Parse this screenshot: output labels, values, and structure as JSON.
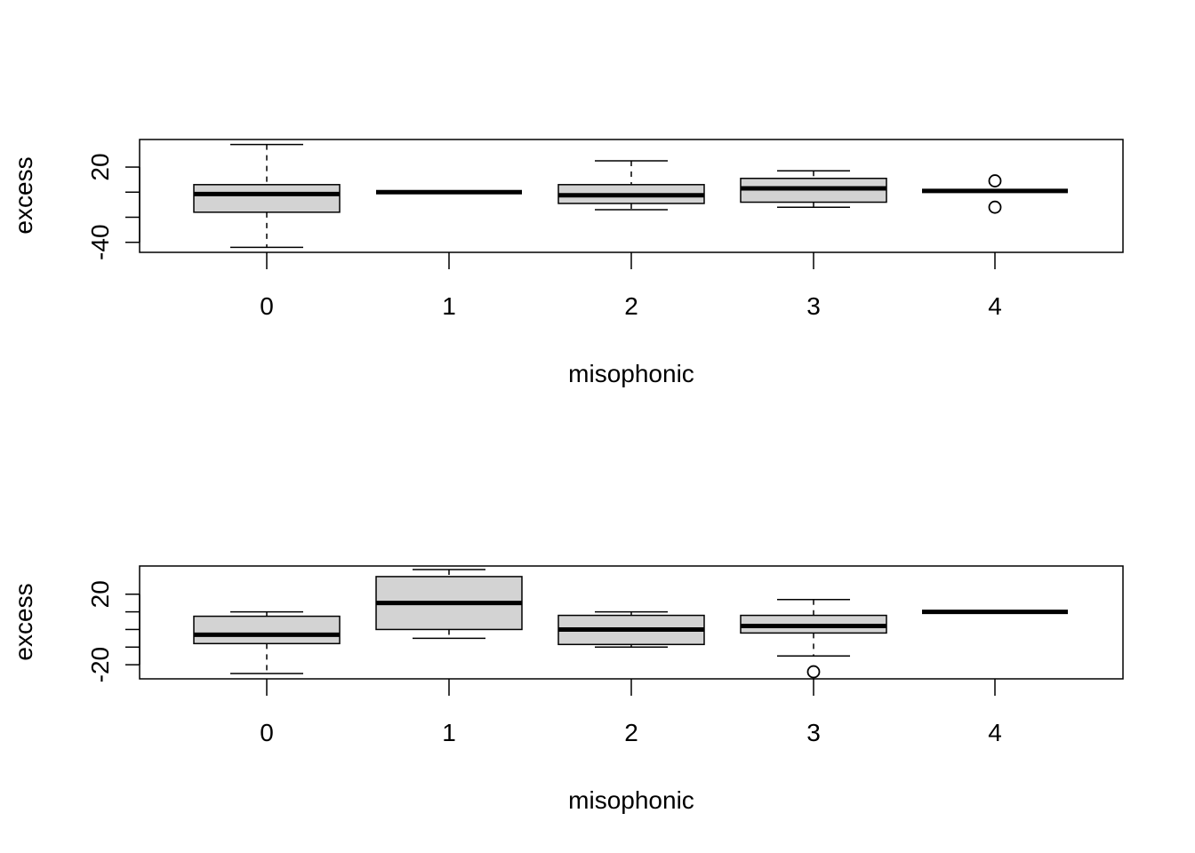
{
  "chart_data": [
    {
      "type": "boxplot",
      "xlabel": "misophonic",
      "ylabel": "excess",
      "categories": [
        "0",
        "1",
        "2",
        "3",
        "4"
      ],
      "y_tick_labels": [
        "-40",
        "20"
      ],
      "y_ticks": [
        -40,
        -20,
        0,
        20
      ],
      "ylim": [
        -48,
        42
      ],
      "grid": false,
      "box_fill": "#d3d3d3",
      "boxes": [
        {
          "category": "0",
          "whisker_low": -44,
          "q1": -16,
          "median": -1.5,
          "q3": 6,
          "whisker_high": 38,
          "outliers": []
        },
        {
          "category": "1",
          "whisker_low": 0,
          "q1": 0,
          "median": 0,
          "q3": 0,
          "whisker_high": 0,
          "outliers": []
        },
        {
          "category": "2",
          "whisker_low": -14,
          "q1": -9,
          "median": -2.5,
          "q3": 6,
          "whisker_high": 25,
          "outliers": []
        },
        {
          "category": "3",
          "whisker_low": -12,
          "q1": -8,
          "median": 3,
          "q3": 11,
          "whisker_high": 17,
          "outliers": []
        },
        {
          "category": "4",
          "whisker_low": 1,
          "q1": 1,
          "median": 1,
          "q3": 1,
          "whisker_high": 1,
          "outliers": [
            9,
            -12
          ]
        }
      ]
    },
    {
      "type": "boxplot",
      "xlabel": "misophonic",
      "ylabel": "excess",
      "categories": [
        "0",
        "1",
        "2",
        "3",
        "4"
      ],
      "y_tick_labels": [
        "-20",
        "20"
      ],
      "y_ticks": [
        -20,
        -10,
        0,
        10,
        20
      ],
      "ylim": [
        -28,
        36
      ],
      "grid": false,
      "box_fill": "#d3d3d3",
      "boxes": [
        {
          "category": "0",
          "whisker_low": -25,
          "q1": -8,
          "median": -3,
          "q3": 7.5,
          "whisker_high": 10,
          "outliers": []
        },
        {
          "category": "1",
          "whisker_low": -5,
          "q1": 0,
          "median": 15,
          "q3": 30,
          "whisker_high": 34,
          "outliers": []
        },
        {
          "category": "2",
          "whisker_low": -10,
          "q1": -8.5,
          "median": 0,
          "q3": 8,
          "whisker_high": 10,
          "outliers": []
        },
        {
          "category": "3",
          "whisker_low": -15,
          "q1": -2,
          "median": 2,
          "q3": 8,
          "whisker_high": 17,
          "outliers": [
            -24
          ]
        },
        {
          "category": "4",
          "whisker_low": 10,
          "q1": 10,
          "median": 10,
          "q3": 10,
          "whisker_high": 10,
          "outliers": []
        }
      ]
    }
  ]
}
